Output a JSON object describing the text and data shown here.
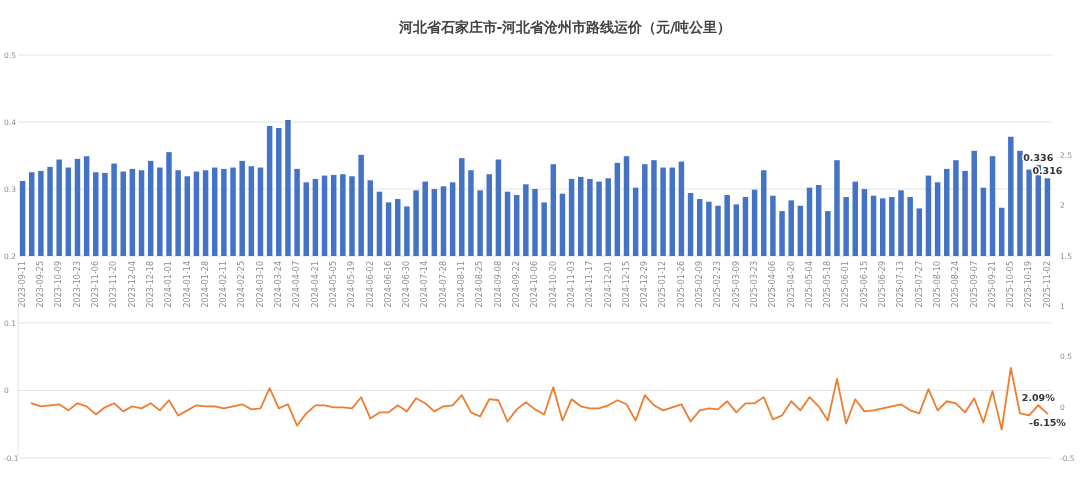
{
  "chart_data": [
    {
      "type": "bar",
      "title": "河北省石家庄市-河北省沧州市路线运价（元/吨公里）",
      "categories": [
        "2023-09-11",
        null,
        "2023-09-25",
        null,
        "2023-10-09",
        null,
        "2023-10-23",
        null,
        "2023-11-06",
        null,
        "2023-11-20",
        null,
        "2023-12-04",
        null,
        "2023-12-18",
        null,
        "2024-01-01",
        null,
        "2024-01-14",
        null,
        "2024-01-28",
        null,
        "2024-02-11",
        null,
        "2024-02-25",
        null,
        "2024-03-10",
        null,
        "2024-03-24",
        null,
        "2024-04-07",
        null,
        "2024-04-21",
        null,
        "2024-05-05",
        null,
        "2024-05-19",
        null,
        "2024-06-02",
        null,
        "2024-06-16",
        null,
        "2024-06-30",
        null,
        "2024-07-14",
        null,
        "2024-07-28",
        null,
        "2024-08-11",
        null,
        "2024-08-25",
        null,
        "2024-09-08",
        null,
        "2024-09-22",
        null,
        "2024-10-06",
        null,
        "2024-10-20",
        null,
        "2024-11-03",
        null,
        "2024-11-17",
        null,
        "2024-12-01",
        null,
        "2024-12-15",
        null,
        "2024-12-29",
        null,
        "2025-01-12",
        null,
        "2025-01-26",
        null,
        "2025-02-09",
        null,
        "2025-02-23",
        null,
        "2025-03-09",
        null,
        "2025-03-23",
        null,
        "2025-04-06",
        null,
        "2025-04-20",
        null,
        "2025-05-04",
        null,
        "2025-05-18",
        null,
        "2025-06-01",
        null,
        "2025-06-15",
        null,
        "2025-06-29",
        null,
        "2025-07-13",
        null,
        "2025-07-27",
        null,
        "2025-08-10",
        null,
        "2025-08-24",
        null,
        "2025-09-07",
        null,
        "2025-09-21",
        null,
        "2025-10-05",
        null,
        "2025-10-19",
        null,
        "2025-11-02"
      ],
      "series": [
        {
          "color": "#4472c4",
          "values": [
            0.312,
            0.325,
            0.327,
            0.333,
            0.344,
            0.332,
            0.345,
            0.349,
            0.325,
            0.324,
            0.338,
            0.326,
            0.33,
            0.328,
            0.342,
            0.332,
            0.355,
            0.328,
            0.319,
            0.326,
            0.328,
            0.332,
            0.33,
            0.332,
            0.342,
            0.334,
            0.332,
            0.394,
            0.391,
            0.403,
            0.33,
            0.31,
            0.315,
            0.32,
            0.321,
            0.322,
            0.319,
            0.351,
            0.313,
            0.296,
            0.28,
            0.285,
            0.274,
            0.298,
            0.311,
            0.3,
            0.304,
            0.31,
            0.346,
            0.328,
            0.298,
            0.322,
            0.344,
            0.296,
            0.291,
            0.307,
            0.3,
            0.28,
            0.337,
            0.293,
            0.315,
            0.318,
            0.315,
            0.311,
            0.316,
            0.339,
            0.349,
            0.302,
            0.337,
            0.343,
            0.332,
            0.332,
            0.341,
            0.294,
            0.285,
            0.281,
            0.275,
            0.291,
            0.277,
            0.288,
            0.299,
            0.328,
            0.29,
            0.267,
            0.283,
            0.275,
            0.302,
            0.306,
            0.267,
            0.343,
            0.288,
            0.311,
            0.3,
            0.29,
            0.286,
            0.288,
            0.298,
            0.288,
            0.271,
            0.32,
            0.31,
            0.33,
            0.343,
            0.327,
            0.357,
            0.302,
            0.349,
            0.272,
            0.378,
            0.357,
            0.329,
            0.336,
            0.316
          ],
          "value_labels": [
            null,
            null,
            null,
            null,
            null,
            null,
            null,
            null,
            null,
            null,
            null,
            null,
            null,
            null,
            null,
            null,
            null,
            null,
            null,
            null,
            null,
            null,
            null,
            null,
            null,
            null,
            null,
            null,
            null,
            null,
            null,
            null,
            null,
            null,
            null,
            null,
            null,
            null,
            null,
            null,
            null,
            null,
            null,
            null,
            null,
            null,
            null,
            null,
            null,
            null,
            null,
            null,
            null,
            null,
            null,
            null,
            null,
            null,
            null,
            null,
            null,
            null,
            null,
            null,
            null,
            null,
            null,
            null,
            null,
            null,
            null,
            null,
            null,
            null,
            null,
            null,
            null,
            null,
            null,
            null,
            null,
            null,
            null,
            null,
            null,
            null,
            null,
            null,
            null,
            null,
            null,
            null,
            null,
            null,
            null,
            null,
            null,
            null,
            null,
            null,
            null,
            null,
            null,
            null,
            null,
            null,
            null,
            null,
            null,
            null,
            null,
            "0.336",
            "0.316"
          ]
        }
      ],
      "ylim": [
        0.2,
        0.5
      ],
      "yticks": [
        0.2,
        0.3,
        0.4,
        0.5
      ],
      "y2lim": [
        1.5,
        3.5
      ],
      "y2ticks": [
        1.5,
        2,
        2.5
      ],
      "grid": "y"
    },
    {
      "type": "line",
      "categories": [
        null,
        null,
        null,
        null,
        null,
        null,
        null,
        null,
        null,
        null,
        null,
        null,
        null,
        null,
        null,
        null,
        null,
        null,
        null,
        null,
        null,
        null,
        null,
        null,
        null,
        null,
        null,
        null,
        null,
        null,
        null,
        null,
        null,
        null,
        null,
        null,
        null,
        null,
        null,
        null,
        null,
        null,
        null,
        null,
        null,
        null,
        null,
        null,
        null,
        null,
        null,
        null,
        null,
        null,
        null,
        null,
        null,
        null,
        null,
        null,
        null,
        null,
        null,
        null,
        null,
        null,
        null,
        null,
        null,
        null,
        null,
        null,
        null,
        null,
        null,
        null,
        null,
        null,
        null,
        null,
        null,
        null,
        null,
        null,
        null,
        null,
        null,
        null,
        null,
        null,
        null,
        null,
        null,
        null,
        null,
        null,
        null,
        null,
        null,
        null,
        null,
        null,
        null,
        null,
        null,
        null,
        null,
        null,
        null,
        null,
        null,
        null,
        null
      ],
      "series": [
        {
          "color": "#ed7d31",
          "axis": "y2",
          "values": [
            null,
            0.04,
            0.01,
            0.02,
            0.03,
            -0.03,
            0.04,
            0.01,
            -0.07,
            0.0,
            0.04,
            -0.04,
            0.01,
            -0.01,
            0.04,
            -0.03,
            0.07,
            -0.08,
            -0.03,
            0.02,
            0.01,
            0.01,
            -0.01,
            0.01,
            0.03,
            -0.02,
            -0.01,
            0.19,
            -0.01,
            0.03,
            -0.18,
            -0.06,
            0.02,
            0.02,
            0.0,
            0.0,
            -0.01,
            0.1,
            -0.11,
            -0.05,
            -0.05,
            0.02,
            -0.04,
            0.09,
            0.04,
            -0.04,
            0.01,
            0.02,
            0.12,
            -0.05,
            -0.09,
            0.08,
            0.07,
            -0.14,
            -0.02,
            0.05,
            -0.02,
            -0.07,
            0.2,
            -0.13,
            0.08,
            0.01,
            -0.01,
            -0.01,
            0.02,
            0.07,
            0.03,
            -0.13,
            0.12,
            0.02,
            -0.03,
            0.0,
            0.03,
            -0.14,
            -0.03,
            -0.01,
            -0.02,
            0.06,
            -0.05,
            0.04,
            0.04,
            0.1,
            -0.12,
            -0.08,
            0.06,
            -0.03,
            0.1,
            0.01,
            -0.13,
            0.28,
            -0.16,
            0.08,
            -0.04,
            -0.03,
            -0.01,
            0.01,
            0.03,
            -0.03,
            -0.06,
            0.18,
            -0.03,
            0.06,
            0.04,
            -0.05,
            0.09,
            -0.15,
            0.16,
            -0.22,
            0.39,
            -0.06,
            -0.08,
            0.0209,
            -0.0615
          ],
          "value_labels": [
            null,
            null,
            null,
            null,
            null,
            null,
            null,
            null,
            null,
            null,
            null,
            null,
            null,
            null,
            null,
            null,
            null,
            null,
            null,
            null,
            null,
            null,
            null,
            null,
            null,
            null,
            null,
            null,
            null,
            null,
            null,
            null,
            null,
            null,
            null,
            null,
            null,
            null,
            null,
            null,
            null,
            null,
            null,
            null,
            null,
            null,
            null,
            null,
            null,
            null,
            null,
            null,
            null,
            null,
            null,
            null,
            null,
            null,
            null,
            null,
            null,
            null,
            null,
            null,
            null,
            null,
            null,
            null,
            null,
            null,
            null,
            null,
            null,
            null,
            null,
            null,
            null,
            null,
            null,
            null,
            null,
            null,
            null,
            null,
            null,
            null,
            null,
            null,
            null,
            null,
            null,
            null,
            null,
            null,
            null,
            null,
            null,
            null,
            null,
            null,
            null,
            null,
            null,
            null,
            null,
            null,
            null,
            null,
            null,
            null,
            null,
            "2.09%",
            "-6.15%"
          ]
        }
      ],
      "ylim": [
        -0.1,
        0.125
      ],
      "yticks": [
        -0.1,
        0,
        0.1
      ],
      "y2lim": [
        -0.5,
        1
      ],
      "y2ticks": [
        -0.5,
        0,
        0.5,
        1
      ],
      "grid": "y"
    }
  ]
}
